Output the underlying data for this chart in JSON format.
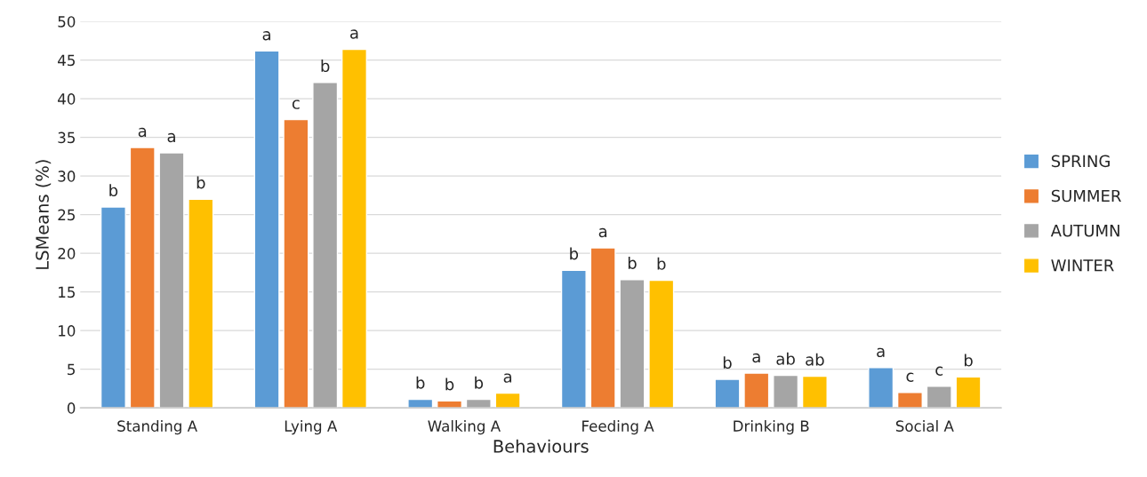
{
  "chart_data": {
    "type": "bar",
    "xlabel": "Behaviours",
    "ylabel": "LSMeans (%)",
    "categories": [
      "Standing A",
      "Lying A",
      "Walking A",
      "Feeding A",
      "Drinking B",
      "Social A"
    ],
    "series": [
      {
        "name": "SPRING",
        "color": "#5b9bd5",
        "values": [
          26.0,
          46.2,
          1.1,
          17.8,
          3.7,
          5.2
        ],
        "value_labels": [
          "b",
          "a",
          "b",
          "b",
          "b",
          "a"
        ]
      },
      {
        "name": "SUMMER",
        "color": "#ed7d31",
        "values": [
          33.7,
          37.3,
          0.9,
          20.7,
          4.5,
          2.0
        ],
        "value_labels": [
          "a",
          "c",
          "b",
          "a",
          "a",
          "c"
        ]
      },
      {
        "name": "AUTUMN",
        "color": "#a5a5a5",
        "values": [
          33.0,
          42.1,
          1.1,
          16.6,
          4.2,
          2.8
        ],
        "value_labels": [
          "a",
          "b",
          "b",
          "b",
          "ab",
          "c"
        ]
      },
      {
        "name": "WINTER",
        "color": "#ffc000",
        "values": [
          27.0,
          46.4,
          1.9,
          16.5,
          4.1,
          4.0
        ],
        "value_labels": [
          "b",
          "a",
          "a",
          "b",
          "ab",
          "b"
        ]
      }
    ],
    "ylim": [
      0,
      50
    ],
    "yticks": [
      0,
      5,
      10,
      15,
      20,
      25,
      30,
      35,
      40,
      45,
      50
    ],
    "grid": "y",
    "legend": "right"
  }
}
